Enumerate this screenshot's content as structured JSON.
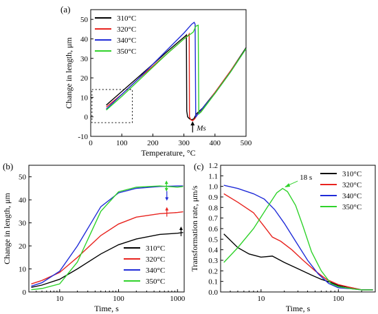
{
  "colors": {
    "310": "#000000",
    "320": "#e8231e",
    "340": "#1f2bd8",
    "350": "#2fd22a"
  },
  "chart_data": [
    {
      "id": "a",
      "type": "line",
      "panel_label": "(a)",
      "xlabel": "Temperature, °C",
      "ylabel": "Change in length, μm",
      "xlim": [
        0,
        500
      ],
      "ylim": [
        -10,
        55
      ],
      "xticks": [
        "0",
        "100",
        "200",
        "300",
        "400",
        "500"
      ],
      "yticks": [
        "-10",
        "0",
        "10",
        "20",
        "30",
        "40",
        "50"
      ],
      "legend_position": "top-left",
      "annotation": "Ms",
      "series": [
        {
          "name": "310°C",
          "color_key": "310",
          "points": [
            [
              50,
              6
            ],
            [
              100,
              13
            ],
            [
              150,
              20
            ],
            [
              200,
              27
            ],
            [
              250,
              34
            ],
            [
              290,
              39.5
            ],
            [
              305,
              41.5
            ],
            [
              308,
              42
            ],
            [
              309,
              3
            ],
            [
              312,
              0
            ],
            [
              318,
              -1
            ],
            [
              325,
              -1.5
            ],
            [
              332,
              -1
            ],
            [
              340,
              1.5
            ],
            [
              360,
              4.5
            ],
            [
              400,
              12.5
            ],
            [
              450,
              23.5
            ],
            [
              500,
              35.5
            ]
          ]
        },
        {
          "name": "320°C",
          "color_key": "320",
          "points": [
            [
              50,
              5
            ],
            [
              100,
              11.5
            ],
            [
              150,
              19
            ],
            [
              200,
              26
            ],
            [
              250,
              33
            ],
            [
              300,
              40
            ],
            [
              315,
              42
            ],
            [
              317,
              42.5
            ],
            [
              318,
              0
            ],
            [
              322,
              -1.5
            ],
            [
              328,
              -2
            ],
            [
              335,
              -1
            ],
            [
              345,
              1.5
            ],
            [
              360,
              4
            ],
            [
              400,
              12.5
            ],
            [
              450,
              23.5
            ],
            [
              500,
              35
            ]
          ]
        },
        {
          "name": "340°C",
          "color_key": "340",
          "points": [
            [
              50,
              4
            ],
            [
              100,
              11.5
            ],
            [
              150,
              19
            ],
            [
              200,
              27
            ],
            [
              250,
              35
            ],
            [
              300,
              43
            ],
            [
              325,
              47.5
            ],
            [
              333,
              48.5
            ],
            [
              336,
              47.5
            ],
            [
              338,
              0
            ],
            [
              343,
              1
            ],
            [
              350,
              2.5
            ],
            [
              400,
              12
            ],
            [
              450,
              23
            ],
            [
              500,
              35
            ]
          ]
        },
        {
          "name": "350°C",
          "color_key": "350",
          "points": [
            [
              50,
              3.5
            ],
            [
              100,
              10.5
            ],
            [
              150,
              18
            ],
            [
              200,
              25.5
            ],
            [
              250,
              33
            ],
            [
              300,
              40
            ],
            [
              330,
              43.5
            ],
            [
              338,
              46.5
            ],
            [
              346,
              47
            ],
            [
              348,
              1.5
            ],
            [
              355,
              2.5
            ],
            [
              400,
              12
            ],
            [
              450,
              23
            ],
            [
              500,
              35
            ]
          ]
        }
      ]
    },
    {
      "id": "b",
      "type": "line",
      "panel_label": "(b)",
      "xlabel": "Time, s",
      "ylabel": "Change in length, μm",
      "xscale": "log",
      "xlim": [
        3,
        1300
      ],
      "ylim": [
        0,
        55
      ],
      "xticks": [
        "10",
        "100",
        "1000"
      ],
      "yticks": [
        "0",
        "10",
        "20",
        "30",
        "40",
        "50"
      ],
      "legend_position": "bottom-right",
      "series": [
        {
          "name": "310°C",
          "color_key": "310",
          "points": [
            [
              3.3,
              2
            ],
            [
              5,
              3
            ],
            [
              10,
              5.5
            ],
            [
              20,
              10
            ],
            [
              50,
              16.5
            ],
            [
              100,
              20.5
            ],
            [
              200,
              23
            ],
            [
              500,
              25
            ],
            [
              1000,
              25.5
            ],
            [
              1250,
              25.8
            ]
          ]
        },
        {
          "name": "320°C",
          "color_key": "320",
          "points": [
            [
              3.3,
              3.5
            ],
            [
              5,
              5
            ],
            [
              10,
              8.5
            ],
            [
              20,
              15
            ],
            [
              50,
              24.5
            ],
            [
              100,
              29.5
            ],
            [
              200,
              32.5
            ],
            [
              500,
              34
            ],
            [
              1000,
              34.5
            ],
            [
              1250,
              34.8
            ]
          ]
        },
        {
          "name": "340°C",
          "color_key": "340",
          "points": [
            [
              3.3,
              2.5
            ],
            [
              5,
              4
            ],
            [
              10,
              9
            ],
            [
              20,
              20
            ],
            [
              50,
              37
            ],
            [
              100,
              43
            ],
            [
              200,
              45
            ],
            [
              500,
              45.8
            ],
            [
              1000,
              46
            ],
            [
              1250,
              46
            ]
          ]
        },
        {
          "name": "350°C",
          "color_key": "350",
          "points": [
            [
              3.3,
              1
            ],
            [
              5,
              1.5
            ],
            [
              10,
              3.5
            ],
            [
              20,
              13
            ],
            [
              50,
              35
            ],
            [
              100,
              43.5
            ],
            [
              200,
              45.5
            ],
            [
              500,
              46
            ],
            [
              1000,
              45.5
            ],
            [
              1250,
              45.8
            ]
          ]
        }
      ],
      "markers": [
        {
          "x": 650,
          "y": 46,
          "dir": "both",
          "color_key": "350"
        },
        {
          "x": 660,
          "y": 42,
          "dir": "down",
          "color_key": "340"
        },
        {
          "x": 660,
          "y": 34.5,
          "dir": "up",
          "color_key": "320"
        },
        {
          "x": 1150,
          "y": 26,
          "dir": "up",
          "color_key": "310"
        }
      ]
    },
    {
      "id": "c",
      "type": "line",
      "panel_label": "(c)",
      "xlabel": "Time, s",
      "ylabel": "Transformation rate, μm/s",
      "xscale": "log",
      "xlim": [
        3,
        300
      ],
      "ylim": [
        0,
        1.2
      ],
      "xticks": [
        "10",
        "100"
      ],
      "yticks": [
        "0.0",
        "0.1",
        "0.2",
        "0.3",
        "0.4",
        "0.5",
        "0.6",
        "0.7",
        "0.8",
        "0.9",
        "1.0",
        "1.1",
        "1.2"
      ],
      "legend_position": "top-right",
      "annotation": "18 s",
      "series": [
        {
          "name": "310°C",
          "color_key": "310",
          "points": [
            [
              3.3,
              0.55
            ],
            [
              5,
              0.42
            ],
            [
              7,
              0.36
            ],
            [
              10,
              0.33
            ],
            [
              14,
              0.34
            ],
            [
              20,
              0.28
            ],
            [
              30,
              0.22
            ],
            [
              45,
              0.16
            ],
            [
              60,
              0.12
            ],
            [
              80,
              0.09
            ],
            [
              100,
              0.06
            ],
            [
              150,
              0.04
            ],
            [
              200,
              0.02
            ],
            [
              280,
              0.02
            ]
          ]
        },
        {
          "name": "320°C",
          "color_key": "320",
          "points": [
            [
              3.3,
              0.93
            ],
            [
              5,
              0.85
            ],
            [
              8,
              0.75
            ],
            [
              11,
              0.62
            ],
            [
              14,
              0.52
            ],
            [
              18,
              0.48
            ],
            [
              25,
              0.4
            ],
            [
              35,
              0.3
            ],
            [
              50,
              0.2
            ],
            [
              70,
              0.12
            ],
            [
              100,
              0.07
            ],
            [
              150,
              0.04
            ],
            [
              200,
              0.02
            ],
            [
              280,
              0.02
            ]
          ]
        },
        {
          "name": "340°C",
          "color_key": "340",
          "points": [
            [
              3.3,
              1.01
            ],
            [
              5,
              0.98
            ],
            [
              8,
              0.93
            ],
            [
              11,
              0.88
            ],
            [
              15,
              0.78
            ],
            [
              20,
              0.65
            ],
            [
              28,
              0.48
            ],
            [
              40,
              0.3
            ],
            [
              55,
              0.17
            ],
            [
              75,
              0.08
            ],
            [
              100,
              0.04
            ],
            [
              150,
              0.03
            ],
            [
              200,
              0.02
            ],
            [
              280,
              0.02
            ]
          ]
        },
        {
          "name": "350°C",
          "color_key": "350",
          "points": [
            [
              3.3,
              0.28
            ],
            [
              5,
              0.42
            ],
            [
              8,
              0.6
            ],
            [
              12,
              0.8
            ],
            [
              16,
              0.94
            ],
            [
              19,
              0.98
            ],
            [
              22,
              0.95
            ],
            [
              28,
              0.82
            ],
            [
              35,
              0.62
            ],
            [
              45,
              0.38
            ],
            [
              60,
              0.2
            ],
            [
              80,
              0.08
            ],
            [
              100,
              0.05
            ],
            [
              150,
              0.03
            ],
            [
              200,
              0.02
            ],
            [
              280,
              0.02
            ]
          ]
        }
      ]
    }
  ]
}
